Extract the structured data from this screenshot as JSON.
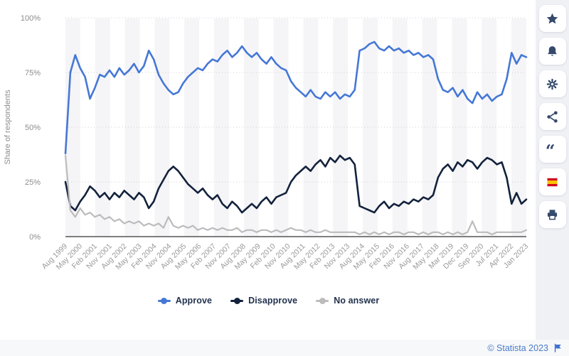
{
  "chart_data": {
    "type": "line",
    "ylabel": "Share of respondents",
    "ylim": [
      0,
      100
    ],
    "y_tick_labels": [
      "0%",
      "25%",
      "50%",
      "75%",
      "100%"
    ],
    "y_tick_values": [
      0,
      25,
      50,
      75,
      100
    ],
    "grid": "horizontal-dotted",
    "background_stripes": true,
    "legend_position": "bottom",
    "x_start": "Aug 1999",
    "x_end": "Jan 2023",
    "sample_interval_months": 3,
    "x_tick_labels": [
      "Aug 1999",
      "May 2000",
      "Feb 2001",
      "Nov 2001",
      "Aug 2002",
      "May 2003",
      "Feb 2004",
      "Nov 2004",
      "Aug 2005",
      "May 2006",
      "Feb 2007",
      "Nov 2007",
      "Aug 2008",
      "May 2009",
      "Feb 2010",
      "Nov 2010",
      "Aug 2011",
      "May 2012",
      "Feb 2013",
      "Nov 2013",
      "Aug 2014",
      "May 2015",
      "Feb 2016",
      "Nov 2016",
      "Aug 2017",
      "May 2018",
      "Mar 2019",
      "Dec 2019",
      "Sep 2020",
      "Jul 2021",
      "Apr 2022",
      "Jan 2023"
    ],
    "series": [
      {
        "name": "Approve",
        "color": "#4577d6",
        "values": [
          38,
          75,
          83,
          77,
          73,
          63,
          68,
          74,
          73,
          76,
          73,
          77,
          74,
          76,
          79,
          75,
          78,
          85,
          81,
          74,
          70,
          67,
          65,
          66,
          70,
          73,
          75,
          77,
          76,
          79,
          81,
          80,
          83,
          85,
          82,
          84,
          87,
          84,
          82,
          84,
          81,
          79,
          82,
          79,
          77,
          76,
          71,
          68,
          66,
          64,
          67,
          64,
          63,
          66,
          64,
          66,
          63,
          65,
          64,
          67,
          85,
          86,
          88,
          89,
          86,
          85,
          87,
          85,
          86,
          84,
          85,
          83,
          84,
          82,
          83,
          81,
          72,
          67,
          66,
          68,
          64,
          67,
          63,
          61,
          66,
          63,
          65,
          62,
          64,
          65,
          72,
          84,
          79,
          83,
          82
        ]
      },
      {
        "name": "Disapprove",
        "color": "#13223c",
        "values": [
          25,
          14,
          12,
          16,
          19,
          23,
          21,
          18,
          20,
          17,
          20,
          18,
          21,
          19,
          17,
          20,
          18,
          13,
          16,
          22,
          26,
          30,
          32,
          30,
          27,
          24,
          22,
          20,
          22,
          19,
          17,
          19,
          15,
          13,
          16,
          14,
          11,
          13,
          15,
          13,
          16,
          18,
          15,
          18,
          19,
          20,
          25,
          28,
          30,
          32,
          30,
          33,
          35,
          32,
          36,
          34,
          37,
          35,
          36,
          33,
          14,
          13,
          12,
          11,
          14,
          16,
          13,
          15,
          14,
          16,
          15,
          17,
          16,
          18,
          17,
          19,
          27,
          31,
          33,
          30,
          34,
          32,
          35,
          34,
          31,
          34,
          36,
          35,
          33,
          34,
          27,
          15,
          20,
          15,
          17
        ]
      },
      {
        "name": "No answer",
        "color": "#bcbcbc",
        "values": [
          37,
          12,
          9,
          13,
          10,
          11,
          9,
          10,
          8,
          9,
          7,
          8,
          6,
          7,
          6,
          7,
          5,
          6,
          5,
          6,
          4,
          9,
          5,
          4,
          5,
          4,
          5,
          3,
          4,
          3,
          4,
          3,
          4,
          3,
          3,
          4,
          2,
          3,
          3,
          2,
          3,
          3,
          2,
          3,
          2,
          3,
          4,
          3,
          3,
          2,
          3,
          2,
          2,
          3,
          2,
          2,
          2,
          2,
          2,
          2,
          1,
          2,
          1,
          2,
          1,
          2,
          1,
          2,
          2,
          1,
          2,
          2,
          1,
          2,
          1,
          2,
          2,
          1,
          2,
          1,
          2,
          1,
          2,
          7,
          2,
          2,
          2,
          1,
          2,
          2,
          2,
          2,
          2,
          2,
          3
        ]
      }
    ]
  },
  "colors": {
    "stripe": "#f5f5f7",
    "grid": "#d0d0d0",
    "baseline": "#555555",
    "axis_text": "#9a9a9a",
    "y_axis_text": "#8c8c8c"
  },
  "toolbar": {
    "items": [
      {
        "icon": "star-icon"
      },
      {
        "icon": "bell-icon"
      },
      {
        "icon": "settings-icon"
      },
      {
        "icon": "share-icon"
      },
      {
        "icon": "quote-icon"
      },
      {
        "icon": "spain-flag-icon"
      },
      {
        "icon": "print-icon"
      }
    ]
  },
  "footer": {
    "copyright": "© Statista 2023",
    "flag_icon": "report-flag-icon"
  }
}
